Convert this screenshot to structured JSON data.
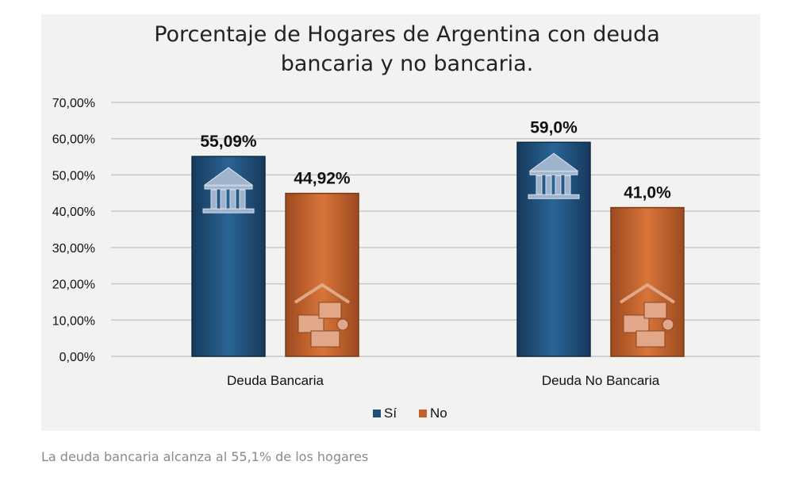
{
  "chart_data": {
    "type": "bar",
    "title": [
      "Porcentaje de Hogares de Argentina con deuda",
      "bancaria y no bancaria."
    ],
    "categories": [
      "Deuda Bancaria",
      "Deuda No Bancaria"
    ],
    "series": [
      {
        "name": "Sí",
        "values": [
          55.09,
          59.0
        ],
        "labels": [
          "55,09%",
          "59,0%"
        ],
        "color": "#1f4e79",
        "icon": "bank-icon"
      },
      {
        "name": "No",
        "values": [
          44.92,
          41.0
        ],
        "labels": [
          "44,92%",
          "41,0%"
        ],
        "color": "#c0612b",
        "icon": "house-cards-icon"
      }
    ],
    "ylim": [
      0,
      70
    ],
    "yticks": [
      0,
      10,
      20,
      30,
      40,
      50,
      60,
      70
    ],
    "ytick_labels": [
      "0,00%",
      "10,00%",
      "20,00%",
      "30,00%",
      "40,00%",
      "50,00%",
      "60,00%",
      "70,00%"
    ],
    "xlabel": "",
    "ylabel": "",
    "grid": true,
    "legend_position": "bottom"
  },
  "caption": "La deuda bancaria alcanza al 55,1% de los hogares"
}
